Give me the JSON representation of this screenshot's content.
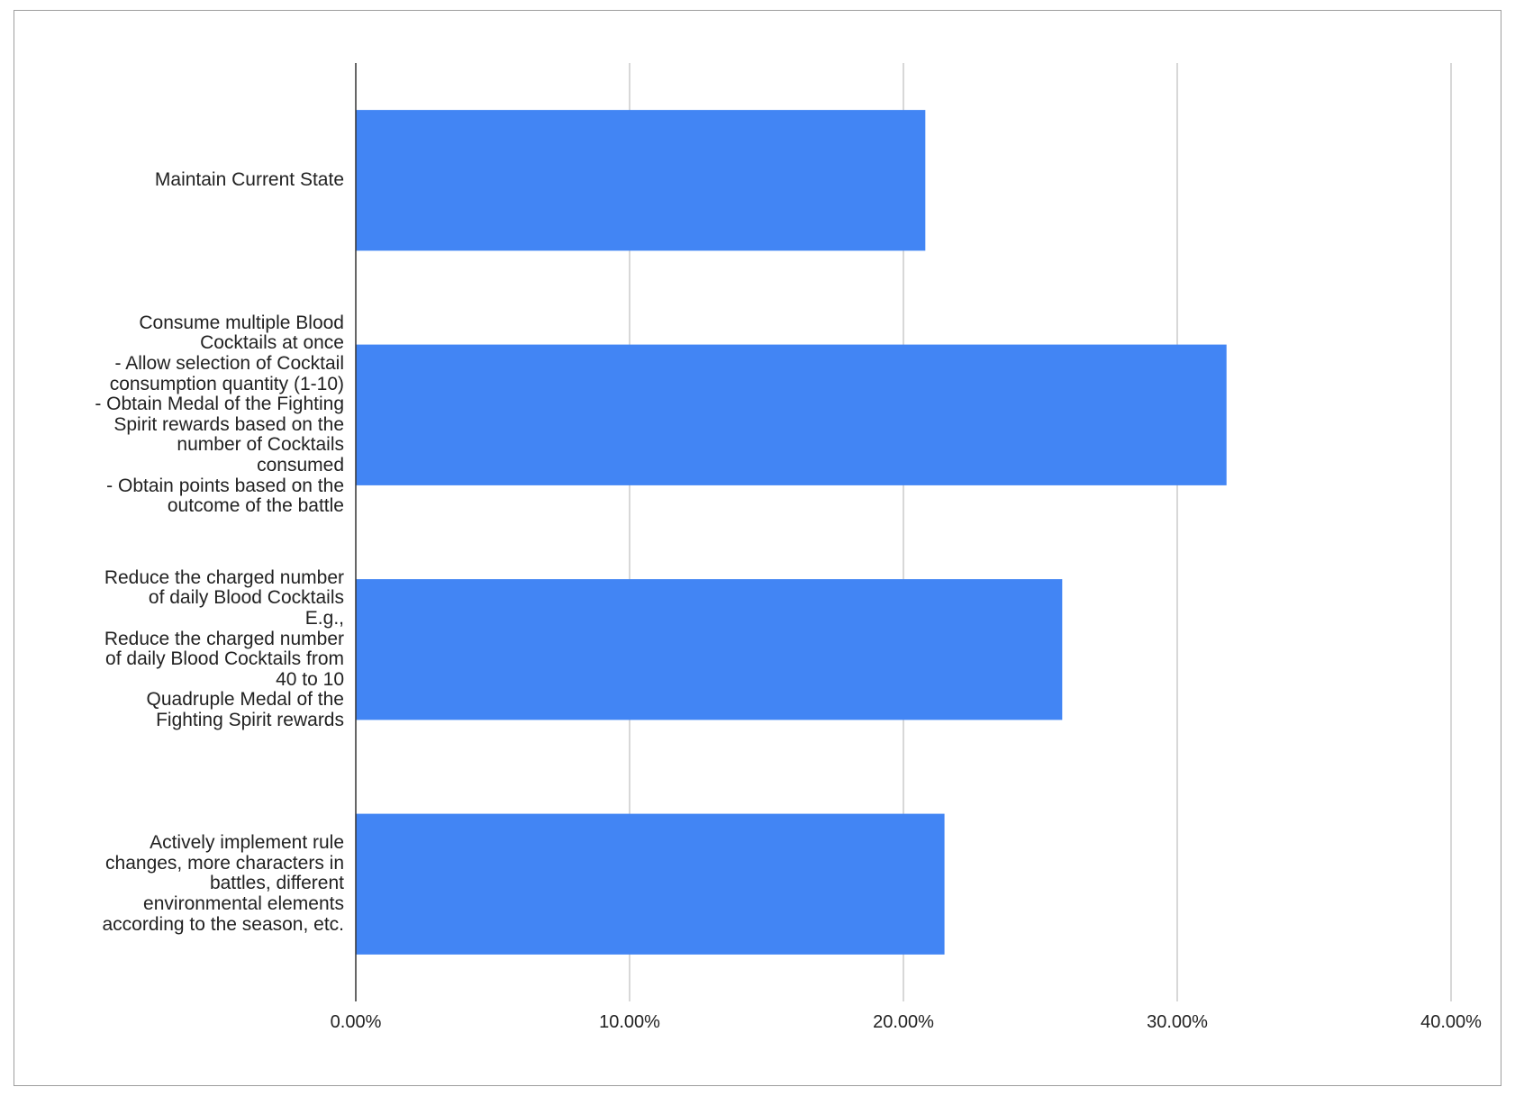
{
  "chart_data": {
    "type": "bar",
    "orientation": "horizontal",
    "categories": [
      "Maintain Current State",
      "Consume multiple Blood\nCocktails at once\n- Allow selection of Cocktail\nconsumption quantity (1-10)\n- Obtain Medal of the Fighting\nSpirit rewards based on the\nnumber of Cocktails\nconsumed\n- Obtain points based on the\noutcome of the battle",
      "Reduce the charged number\nof daily Blood Cocktails\nE.g.,\nReduce the charged number\nof daily Blood Cocktails from\n40 to 10\nQuadruple Medal of the\nFighting Spirit rewards",
      "Actively implement rule\nchanges, more characters in\nbattles, different\nenvironmental elements\naccording to the season, etc."
    ],
    "values": [
      20.8,
      31.8,
      25.8,
      21.5
    ],
    "xlim": [
      0,
      40
    ],
    "xticks": [
      0,
      10,
      20,
      30,
      40
    ],
    "xtick_labels": [
      "0.00%",
      "10.00%",
      "20.00%",
      "30.00%",
      "40.00%"
    ],
    "title": "",
    "xlabel": "",
    "ylabel": "",
    "grid": true,
    "legend": "none",
    "bar_color": "#4285f4",
    "grid_color": "#cccccc",
    "axis_color": "#333333"
  }
}
